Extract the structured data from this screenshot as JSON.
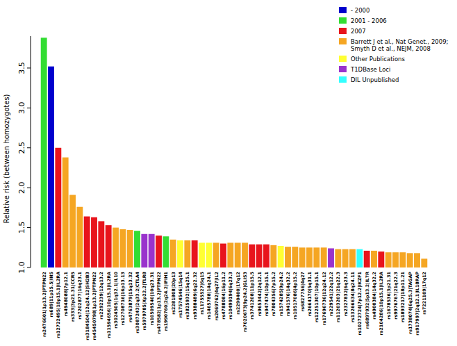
{
  "chart_data": {
    "type": "bar",
    "y_label": "Relative risk (between homozygotes)",
    "categories": [
      "rs2476601|1p13.2|PTPN22",
      "rs689|11p15.5|INS",
      "rs12722495|10p15.1|IL2RA",
      "rs4948088|7p12.1",
      "rs333|3p21.31|CCR5",
      "rs7202877|16q23.1",
      "rs3184504|12q24.12|SH2B3",
      "rs45450798|1p13.2|PTPN22",
      "rs2292239|12q13.2",
      "rs11594656|10p15.1|IL2RA",
      "rs3024505|1q32.1|IL10",
      "rs12708716|16p13.13",
      "rs4763879|15q13.32",
      "rs3087243|2q33.2|CTLA4",
      "rs5979785|Xp22.2|TLR8",
      "rs10509540|10q23.31",
      "rs478582|1p13.2|PTPN22",
      "rs1990760|2q24.2|IFIH1",
      "rs2281808|20p13",
      "rs17574546|15q14",
      "rs3825932|15q25.1",
      "rs9388489|6q22.32",
      "rs11755527|6q15",
      "rs1465788|14q24.1",
      "rs2069762|4q27|IL2",
      "rs4788084|16p11.2",
      "rs10499194|6q23.3",
      "rs2290400|17q12",
      "rs7020673|9p24.2|GLIS3",
      "rs3741208|11p15.5",
      "rs9653442|2q12.1",
      "rs947474|10p15.1",
      "rs7804356|7p15.2",
      "rs1574285|9p24.2",
      "rs941576|14q32.2",
      "rs10517086|4p15.2",
      "rs6827756|4q27",
      "rs2664170|5q31.1",
      "rs12251307|10p15.1",
      "rs17696736|12q24.12",
      "rs229541|22q12.2",
      "rs11203203|21q22.3",
      "rs2327832|6q23.3",
      "rs13266634|8q24.11",
      "rs10272724|7p12.2|IKZF1",
      "rs6897932|5p13.2|IL7R",
      "rs4900384|14q32.2",
      "rs2104286|10p15.1|IL2RA",
      "rs1678536|3p21.31",
      "rs9976767|21q22.3",
      "rs1893217|18p11.21",
      "rs1738074|6q25.3|TAGAP",
      "rs917997|2q12.1|IL18RAP",
      "rs7221109|17q12"
    ],
    "series": [
      {
        "name": "- 2000",
        "color": "#0000cd",
        "values": [
          null,
          3.52,
          null,
          null,
          null,
          null,
          null,
          null,
          null,
          null,
          null,
          null,
          null,
          null,
          null,
          null,
          null,
          null,
          null,
          null,
          null,
          null,
          null,
          null,
          null,
          null,
          null,
          null,
          null,
          null,
          null,
          null,
          null,
          null,
          null,
          null,
          null,
          null,
          null,
          null,
          null,
          null,
          null,
          null,
          null,
          null,
          null,
          null,
          null,
          null,
          null,
          null,
          null,
          null
        ]
      },
      {
        "name": "2001 - 2006",
        "color": "#33dd33",
        "values": [
          3.88,
          null,
          null,
          null,
          null,
          null,
          null,
          null,
          null,
          null,
          null,
          null,
          null,
          1.46,
          null,
          null,
          null,
          1.39,
          null,
          null,
          null,
          null,
          null,
          null,
          null,
          null,
          null,
          null,
          null,
          null,
          null,
          null,
          null,
          null,
          null,
          null,
          null,
          null,
          null,
          null,
          null,
          null,
          null,
          null,
          null,
          null,
          null,
          null,
          null,
          null,
          null,
          null,
          null,
          null
        ]
      },
      {
        "name": "2007",
        "color": "#e8141c",
        "values": [
          null,
          null,
          2.5,
          null,
          null,
          null,
          1.64,
          1.63,
          1.58,
          1.53,
          null,
          null,
          null,
          null,
          null,
          null,
          1.4,
          null,
          null,
          null,
          null,
          1.34,
          null,
          null,
          null,
          1.3,
          null,
          null,
          null,
          1.29,
          1.29,
          1.29,
          null,
          null,
          null,
          null,
          null,
          null,
          null,
          null,
          null,
          null,
          null,
          null,
          null,
          1.21,
          null,
          1.2,
          null,
          null,
          null,
          null,
          null,
          null
        ]
      },
      {
        "name": "Barrett J et al., Nat Genet., 2009; Smyth D et al., NEJM, 2008",
        "color": "#f5a623",
        "values": [
          null,
          null,
          null,
          2.38,
          1.91,
          1.76,
          null,
          null,
          null,
          null,
          1.5,
          1.48,
          1.47,
          null,
          null,
          null,
          null,
          null,
          1.35,
          null,
          1.34,
          null,
          null,
          null,
          1.31,
          null,
          1.31,
          1.31,
          1.31,
          null,
          null,
          null,
          1.28,
          null,
          1.26,
          1.26,
          1.25,
          1.25,
          1.25,
          1.25,
          null,
          1.23,
          1.23,
          1.23,
          null,
          null,
          1.21,
          null,
          1.19,
          1.19,
          1.19,
          1.18,
          1.18,
          1.11
        ]
      },
      {
        "name": "Other Publications",
        "color": "#ffff33",
        "values": [
          null,
          null,
          null,
          null,
          null,
          null,
          null,
          null,
          null,
          null,
          null,
          null,
          null,
          null,
          null,
          null,
          null,
          null,
          null,
          1.34,
          null,
          null,
          1.31,
          1.31,
          null,
          null,
          null,
          null,
          null,
          null,
          null,
          null,
          null,
          1.27,
          null,
          null,
          null,
          null,
          null,
          null,
          null,
          null,
          null,
          null,
          null,
          null,
          null,
          null,
          null,
          null,
          null,
          null,
          null,
          null
        ]
      },
      {
        "name": "T1DBase Loci",
        "color": "#9933cc",
        "values": [
          null,
          null,
          null,
          null,
          null,
          null,
          null,
          null,
          null,
          null,
          null,
          null,
          null,
          null,
          1.42,
          1.42,
          null,
          null,
          null,
          null,
          null,
          null,
          null,
          null,
          null,
          null,
          null,
          null,
          null,
          null,
          null,
          null,
          null,
          null,
          null,
          null,
          null,
          null,
          null,
          null,
          1.24,
          null,
          null,
          null,
          null,
          null,
          null,
          null,
          null,
          null,
          null,
          null,
          null,
          null
        ]
      },
      {
        "name": "DIL Unpublished",
        "color": "#33ffff",
        "values": [
          null,
          null,
          null,
          null,
          null,
          null,
          null,
          null,
          null,
          null,
          null,
          null,
          null,
          null,
          null,
          null,
          null,
          null,
          null,
          null,
          null,
          null,
          null,
          null,
          null,
          null,
          null,
          null,
          null,
          null,
          null,
          null,
          null,
          null,
          null,
          null,
          null,
          null,
          null,
          null,
          null,
          null,
          null,
          null,
          1.23,
          null,
          null,
          null,
          null,
          null,
          null,
          null,
          null,
          null
        ]
      }
    ],
    "ylim": [
      1,
      3.9
    ],
    "yticks": [
      {
        "value": 1,
        "label": "1.0"
      },
      {
        "value": 1.5,
        "label": "1.5"
      },
      {
        "value": 2,
        "label": "2.0"
      },
      {
        "value": 2.5,
        "label": "2.5"
      },
      {
        "value": 3,
        "label": "3.0"
      },
      {
        "value": 3.5,
        "label": "3.5"
      }
    ],
    "legend": "top-right"
  }
}
